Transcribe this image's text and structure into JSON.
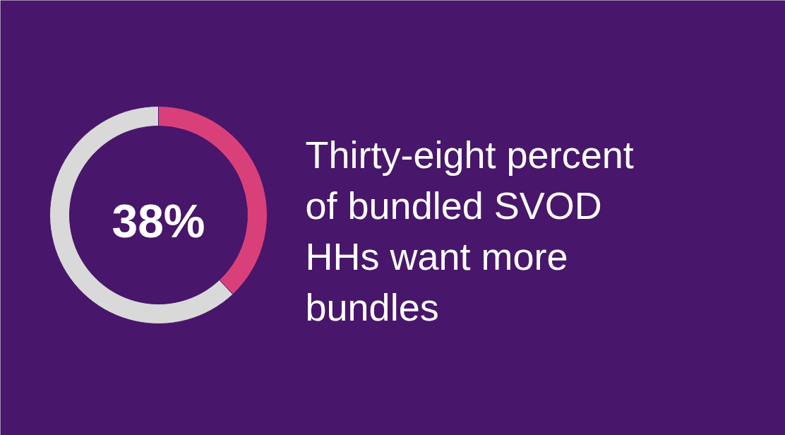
{
  "chart_data": {
    "type": "donut",
    "title": "Thirty-eight percent\nof bundled SVOD\nHHs want more\nbundles",
    "categories": [
      null,
      null
    ],
    "values": [
      38,
      62
    ],
    "colors": [
      "#d9407a",
      "#d9d9d9"
    ],
    "annotations": [
      "38%"
    ]
  }
}
